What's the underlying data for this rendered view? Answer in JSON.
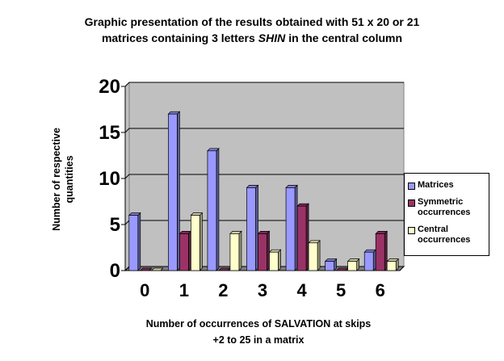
{
  "chart_data": {
    "type": "bar",
    "title": [
      "Graphic presentation of the results obtained with 51 x 20 or 21",
      "matrices containing 3 letters",
      "SHIN",
      "in the central column"
    ],
    "x_label": [
      "Number of occurrences of SALVATION at skips",
      "+2 to 25 in a matrix"
    ],
    "y_label": [
      "Number of respective",
      "quantities"
    ],
    "categories": [
      "0",
      "1",
      "2",
      "3",
      "4",
      "5",
      "6"
    ],
    "series": [
      {
        "name": "Matrices",
        "color": "#9999ff",
        "values": [
          6,
          17,
          13,
          9,
          9,
          1,
          2
        ]
      },
      {
        "name": "Symmetric occurrences",
        "color": "#993366",
        "values": [
          0,
          4,
          0,
          4,
          7,
          0,
          4
        ]
      },
      {
        "name": "Central occurrences",
        "color": "#ffffcc",
        "values": [
          0,
          6,
          4,
          2,
          3,
          1,
          1
        ]
      }
    ],
    "ylim": [
      0,
      20
    ],
    "yticks": [
      0,
      5,
      10,
      15,
      20
    ],
    "grid": true
  }
}
